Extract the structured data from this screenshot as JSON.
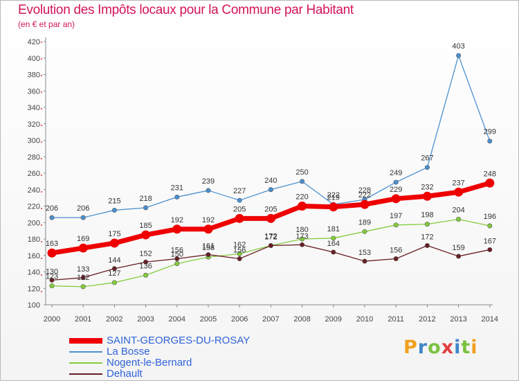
{
  "header": {
    "title": "Evolution des Impôts locaux pour la Commune par Habitant",
    "subtitle": "(en € et par an)"
  },
  "logo": {
    "text": "Proxiti",
    "letter_colors": [
      "#f0a020",
      "#3f86c8",
      "#7cc242",
      "#e04040",
      "#3f86c8",
      "#7cc242",
      "#f0a020"
    ]
  },
  "chart_data": {
    "type": "line",
    "title": "Evolution des Impôts locaux pour la Commune par Habitant",
    "subtitle": "(en € et par an)",
    "xlabel": "",
    "ylabel": "",
    "x": [
      "2000",
      "2001",
      "2002",
      "2003",
      "2004",
      "2005",
      "2006",
      "2007",
      "2008",
      "2009",
      "2010",
      "2011",
      "2012",
      "2013",
      "2014"
    ],
    "ylim": [
      100,
      420
    ],
    "yticks": [
      100,
      120,
      140,
      160,
      180,
      200,
      220,
      240,
      260,
      280,
      300,
      320,
      340,
      360,
      380,
      400,
      420
    ],
    "grid": false,
    "legend_position": "bottom-left",
    "series": [
      {
        "name": "SAINT-GEORGES-DU-ROSAY",
        "color": "#ee0000",
        "values": [
          163,
          169,
          175,
          185,
          192,
          192,
          205,
          205,
          220,
          219,
          222,
          229,
          232,
          237,
          248
        ]
      },
      {
        "name": "La Bosse",
        "color": "#4a90d0",
        "values": [
          206,
          206,
          215,
          218,
          231,
          239,
          227,
          240,
          250,
          222,
          228,
          249,
          267,
          403,
          299
        ]
      },
      {
        "name": "Nogent-le-Bernard",
        "color": "#84cc3c",
        "values": [
          123,
          122,
          127,
          136,
          150,
          158,
          162,
          172,
          180,
          181,
          189,
          197,
          198,
          204,
          196
        ]
      },
      {
        "name": "Dehault",
        "color": "#6a1e24",
        "values": [
          130,
          133,
          144,
          152,
          156,
          161,
          156,
          172,
          173,
          164,
          153,
          156,
          172,
          159,
          167
        ]
      }
    ]
  }
}
